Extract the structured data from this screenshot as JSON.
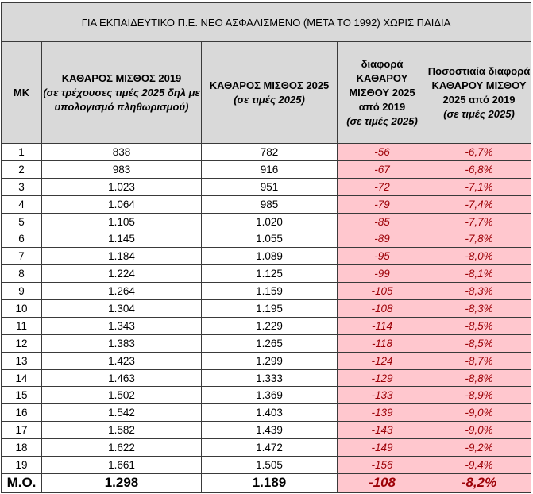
{
  "title": "ΓΙΑ ΕΚΠΑΙΔΕΥΤΙΚΟ Π.Ε. ΝΕΟ ΑΣΦΑΛΙΣΜΕΝΟ (ΜΕΤΑ ΤΟ 1992) ΧΩΡΙΣ ΠΑΙΔΙΑ",
  "headers": [
    {
      "main": "ΜΚ",
      "sub": ""
    },
    {
      "main": "ΚΑΘΑΡΟΣ ΜΙΣΘΟΣ 2019",
      "sub": "(σε τρέχουσες τιμές 2025 δηλ με υπολογισμό πληθωρισμού)"
    },
    {
      "main": "ΚΑΘΑΡΟΣ ΜΙΣΘΟΣ 2025",
      "sub": "(σε τιμές 2025)"
    },
    {
      "main": "διαφορά ΚΑΘΑΡΟΥ ΜΙΣΘΟΥ 2025 από 2019",
      "sub": "(σε τιμές 2025)"
    },
    {
      "main": "Ποσοστιαία διαφορά ΚΑΘΑΡΟΥ ΜΙΣΘΟΥ 2025 από 2019",
      "sub": "(σε τιμές 2025)"
    }
  ],
  "rows": [
    [
      "1",
      "838",
      "782",
      "-56",
      "-6,7%"
    ],
    [
      "2",
      "983",
      "916",
      "-67",
      "-6,8%"
    ],
    [
      "3",
      "1.023",
      "951",
      "-72",
      "-7,1%"
    ],
    [
      "4",
      "1.064",
      "985",
      "-79",
      "-7,4%"
    ],
    [
      "5",
      "1.105",
      "1.020",
      "-85",
      "-7,7%"
    ],
    [
      "6",
      "1.145",
      "1.055",
      "-89",
      "-7,8%"
    ],
    [
      "7",
      "1.184",
      "1.089",
      "-95",
      "-8,0%"
    ],
    [
      "8",
      "1.224",
      "1.125",
      "-99",
      "-8,1%"
    ],
    [
      "9",
      "1.264",
      "1.159",
      "-105",
      "-8,3%"
    ],
    [
      "10",
      "1.304",
      "1.195",
      "-108",
      "-8,3%"
    ],
    [
      "11",
      "1.343",
      "1.229",
      "-114",
      "-8,5%"
    ],
    [
      "12",
      "1.383",
      "1.265",
      "-118",
      "-8,5%"
    ],
    [
      "13",
      "1.423",
      "1.299",
      "-124",
      "-8,7%"
    ],
    [
      "14",
      "1.463",
      "1.333",
      "-129",
      "-8,8%"
    ],
    [
      "15",
      "1.502",
      "1.369",
      "-133",
      "-8,9%"
    ],
    [
      "16",
      "1.542",
      "1.403",
      "-139",
      "-9,0%"
    ],
    [
      "17",
      "1.582",
      "1.439",
      "-143",
      "-9,0%"
    ],
    [
      "18",
      "1.622",
      "1.472",
      "-149",
      "-9,2%"
    ],
    [
      "19",
      "1.661",
      "1.505",
      "-156",
      "-9,4%"
    ]
  ],
  "total": [
    "Μ.Ο.",
    "1.298",
    "1.189",
    "-108",
    "-8,2%"
  ],
  "colors": {
    "header_bg": "#d9d9d9",
    "negative_bg": "#ffc7ce",
    "negative_text": "#9c0006"
  }
}
